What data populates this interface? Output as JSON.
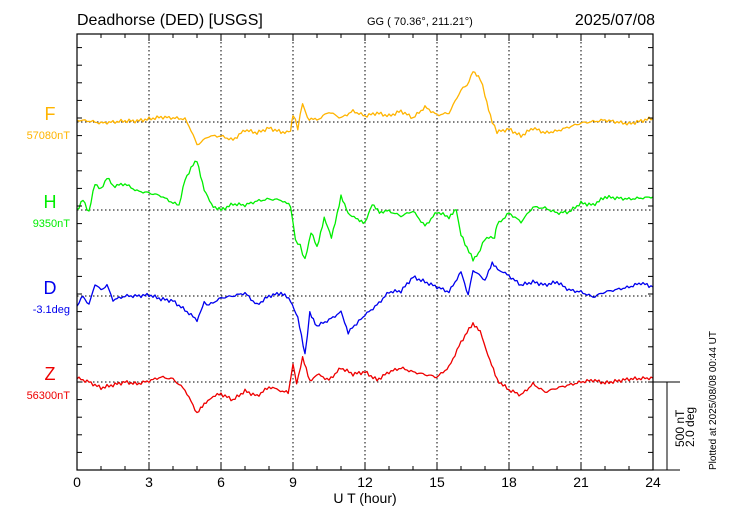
{
  "header": {
    "station": "Deadhorse (DED)  [USGS]",
    "coords": "GG ( 70.36°, 211.21°)",
    "date": "2025/07/08"
  },
  "footer": {
    "plotted": "Plotted at 2025/08/08 00:44 UT",
    "scale_nt": "500 nT",
    "scale_deg": "2.0 deg"
  },
  "chart_data": {
    "type": "line",
    "xlabel": "U T (hour)",
    "xlim": [
      0,
      24
    ],
    "xticks": [
      "0",
      "3",
      "6",
      "9",
      "12",
      "15",
      "18",
      "21",
      "24"
    ],
    "scale_note": "deviation from baseline in nT (D in equivalent nT: 500 nT = 2.0 deg)",
    "grid": true,
    "series": [
      {
        "name": "F",
        "baseline_label": "57080nT",
        "color": "#ffb400",
        "x": [
          0,
          0.5,
          1,
          1.5,
          2,
          2.5,
          3,
          3.5,
          4,
          4.5,
          4.75,
          5,
          5.5,
          6,
          6.5,
          7,
          7.5,
          8,
          8.5,
          8.9,
          9.0,
          9.2,
          9.4,
          9.6,
          10,
          10.5,
          11,
          11.5,
          12,
          12.5,
          13,
          13.5,
          14,
          14.5,
          15,
          15.5,
          16,
          16.25,
          16.5,
          16.8,
          17,
          17.3,
          17.5,
          18,
          18.5,
          19,
          19.5,
          20,
          21,
          22,
          23,
          24
        ],
        "y": [
          11,
          6,
          -6,
          0,
          6,
          6,
          17,
          28,
          23,
          17,
          -45,
          -130,
          -80,
          -80,
          -102,
          -45,
          -62,
          -34,
          -57,
          -57,
          45,
          -34,
          108,
          23,
          11,
          57,
          23,
          62,
          34,
          51,
          34,
          62,
          23,
          85,
          40,
          51,
          182,
          210,
          284,
          250,
          153,
          0,
          -57,
          -40,
          -80,
          -34,
          -62,
          -51,
          -6,
          11,
          -11,
          23
        ]
      },
      {
        "name": "H",
        "baseline_label": "9350nT",
        "color": "#00ee00",
        "x": [
          0,
          0.25,
          0.5,
          0.75,
          1,
          1.25,
          1.5,
          2,
          2.5,
          3,
          3.5,
          4,
          4.25,
          4.5,
          4.75,
          5.0,
          5.3,
          5.6,
          6,
          6.5,
          7,
          7.5,
          8,
          8.5,
          8.9,
          9.1,
          9.3,
          9.5,
          9.75,
          10,
          10.3,
          10.6,
          11,
          11.3,
          11.7,
          12,
          12.3,
          12.6,
          13,
          13.5,
          14,
          14.5,
          15,
          15.5,
          15.8,
          16,
          16.5,
          16.8,
          17,
          17.4,
          17.5,
          18,
          18.5,
          19,
          19.5,
          20,
          20.5,
          21,
          21.5,
          22,
          23,
          24
        ],
        "y": [
          0,
          57,
          -11,
          153,
          114,
          187,
          136,
          148,
          108,
          97,
          80,
          40,
          28,
          170,
          239,
          284,
          114,
          28,
          0,
          34,
          28,
          51,
          62,
          57,
          23,
          -170,
          -205,
          -284,
          -125,
          -210,
          -45,
          -159,
          74,
          -17,
          -57,
          -68,
          28,
          -11,
          -6,
          -34,
          -6,
          -91,
          -11,
          -40,
          0,
          -142,
          -284,
          -227,
          -159,
          -159,
          -85,
          -17,
          -68,
          17,
          11,
          -17,
          -11,
          40,
          28,
          74,
          62,
          74
        ]
      },
      {
        "name": "D",
        "baseline_label": "-3.1deg",
        "color": "#0000ee",
        "x": [
          0,
          0.25,
          0.5,
          0.75,
          1,
          1.25,
          1.5,
          2,
          2.5,
          3,
          3.5,
          4,
          4.5,
          5,
          5.3,
          5.5,
          6,
          6.5,
          7,
          7.5,
          8,
          8.5,
          8.9,
          9.2,
          9.5,
          9.7,
          10,
          10.5,
          11,
          11.3,
          12,
          12.5,
          13,
          13.5,
          14,
          14.5,
          15,
          15.5,
          16,
          16.3,
          16.5,
          17,
          17.3,
          17.6,
          18,
          18.5,
          19,
          19.5,
          20,
          20.5,
          21,
          21.5,
          22,
          23,
          23.5,
          24
        ],
        "y": [
          -57,
          0,
          -51,
          68,
          34,
          62,
          -23,
          0,
          0,
          6,
          -17,
          -28,
          -80,
          -136,
          -40,
          -51,
          -11,
          0,
          17,
          -51,
          0,
          17,
          -23,
          -125,
          -335,
          -97,
          -170,
          -136,
          -91,
          -205,
          -108,
          -51,
          23,
          28,
          108,
          80,
          51,
          23,
          136,
          6,
          148,
          91,
          182,
          148,
          114,
          62,
          80,
          62,
          80,
          34,
          23,
          -6,
          23,
          51,
          74,
          51
        ]
      },
      {
        "name": "Z",
        "baseline_label": "56300nT",
        "color": "#ee0000",
        "x": [
          0,
          0.5,
          1,
          1.5,
          2,
          2.5,
          3,
          3.5,
          4,
          4.5,
          5,
          5.3,
          5.6,
          6,
          6.5,
          7,
          7.5,
          8,
          8.8,
          9.0,
          9.15,
          9.4,
          9.7,
          10,
          10.5,
          11,
          11.5,
          12,
          12.5,
          13,
          13.5,
          14,
          15,
          15.5,
          16,
          16.5,
          16.8,
          17.2,
          17.5,
          18,
          18.5,
          19,
          19.5,
          20,
          21,
          21.5,
          22,
          23,
          24
        ],
        "y": [
          23,
          0,
          -34,
          -17,
          0,
          -11,
          6,
          28,
          17,
          -45,
          -176,
          -130,
          -85,
          -68,
          -102,
          -51,
          -80,
          -28,
          -62,
          97,
          -6,
          136,
          6,
          45,
          11,
          80,
          45,
          57,
          11,
          57,
          80,
          57,
          28,
          85,
          227,
          335,
          284,
          125,
          11,
          -45,
          -74,
          -11,
          -57,
          -34,
          0,
          11,
          -6,
          17,
          23
        ]
      }
    ]
  }
}
